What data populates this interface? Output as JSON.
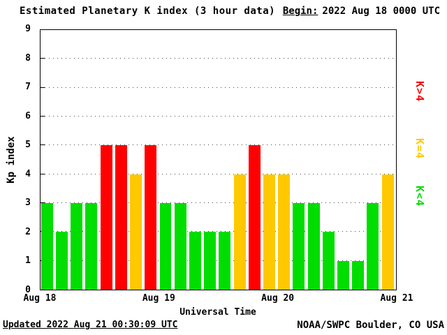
{
  "title": "Estimated Planetary K index (3 hour data)",
  "begin_label": "Begin:",
  "begin_value": "2022 Aug 18 0000 UTC",
  "footer": {
    "updated": "Updated 2022 Aug 21 00:30:09 UTC",
    "source": "NOAA/SWPC Boulder, CO USA"
  },
  "legend": [
    {
      "label": "K>4",
      "color": "#FF0000"
    },
    {
      "label": "K=4",
      "color": "#FFC800"
    },
    {
      "label": "K<4",
      "color": "#00DD00"
    }
  ],
  "chart_data": {
    "type": "bar",
    "title": "Estimated Planetary K index (3 hour data)",
    "xlabel": "Universal Time",
    "ylabel": "Kp index",
    "ylim": [
      0,
      9
    ],
    "y_ticks": [
      0,
      1,
      2,
      3,
      4,
      5,
      6,
      7,
      8,
      9
    ],
    "x_tick_labels": [
      "Aug 18",
      "Aug 19",
      "Aug 20",
      "Aug 21"
    ],
    "begin_time_utc": "2022 Aug 18 0000 UTC",
    "bar_interval_hours": 3,
    "values": [
      3,
      2,
      3,
      3,
      5,
      5,
      4,
      5,
      3,
      3,
      2,
      2,
      2,
      4,
      5,
      4,
      4,
      3,
      3,
      2,
      1,
      1,
      3,
      4
    ],
    "color_rule": {
      "lt4": "#00DD00",
      "eq4": "#FFC800",
      "gt4": "#FF0000"
    },
    "grid": "dotted horizontal lines at each integer Kp level",
    "legend_position": "right, rotated labels"
  }
}
